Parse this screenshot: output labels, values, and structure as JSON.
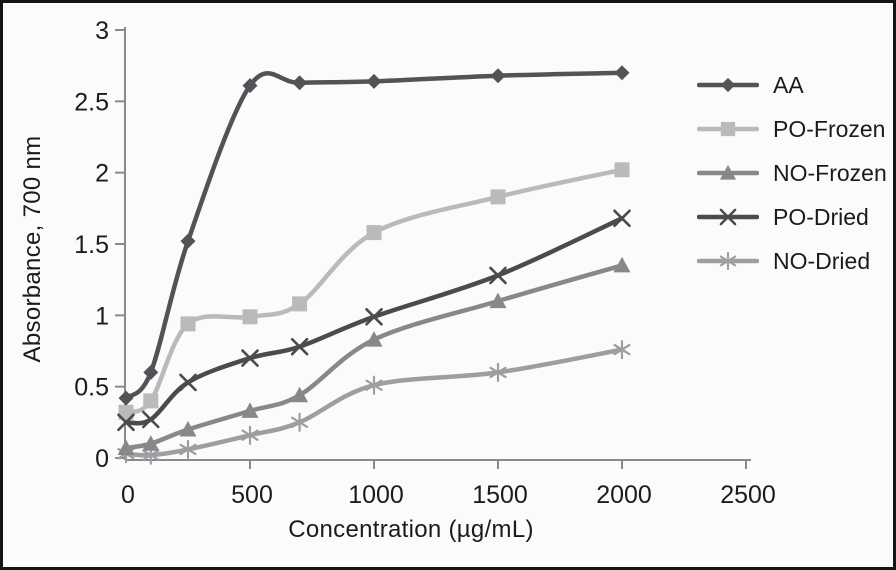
{
  "chart_data": {
    "type": "line",
    "title": "",
    "xlabel": "Concentration (µg/mL)",
    "ylabel": "Absorbance, 700 nm",
    "xlim": [
      0,
      2500
    ],
    "ylim": [
      0,
      3
    ],
    "x_ticks": [
      0,
      500,
      1000,
      1500,
      2000,
      2500
    ],
    "x_tick_labels": [
      "0",
      "500",
      "1000",
      "1500",
      "2000",
      "2500"
    ],
    "y_ticks": [
      0,
      0.5,
      1,
      1.5,
      2,
      2.5,
      3
    ],
    "y_tick_labels": [
      "0",
      "0.5",
      "1",
      "1.5",
      "2",
      "2.5",
      "3"
    ],
    "grid": false,
    "legend_position": "right",
    "x": [
      0,
      100,
      250,
      500,
      700,
      1000,
      1500,
      2000
    ],
    "series": [
      {
        "name": "AA",
        "marker": "diamond",
        "color": "#515356",
        "values": [
          0.42,
          0.6,
          1.52,
          2.61,
          2.63,
          2.64,
          2.68,
          2.7
        ]
      },
      {
        "name": "PO-Frozen",
        "marker": "square",
        "color": "#b9babc",
        "values": [
          0.32,
          0.4,
          0.94,
          0.99,
          1.08,
          1.58,
          1.83,
          2.02
        ]
      },
      {
        "name": "NO-Frozen",
        "marker": "triangle",
        "color": "#87888b",
        "values": [
          0.07,
          0.1,
          0.2,
          0.33,
          0.44,
          0.83,
          1.1,
          1.35
        ]
      },
      {
        "name": "PO-Dried",
        "marker": "x",
        "color": "#4a4b4e",
        "values": [
          0.25,
          0.27,
          0.53,
          0.7,
          0.78,
          0.99,
          1.28,
          1.68
        ]
      },
      {
        "name": "NO-Dried",
        "marker": "asterisk",
        "color": "#9d9ea1",
        "values": [
          0.03,
          0.02,
          0.06,
          0.16,
          0.25,
          0.51,
          0.6,
          0.76
        ]
      }
    ],
    "axis_color": "#8a8a8a"
  }
}
